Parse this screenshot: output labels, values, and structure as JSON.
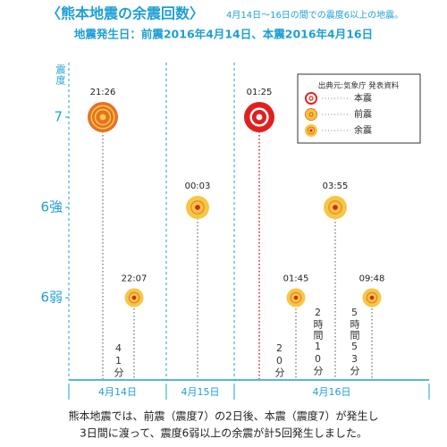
{
  "header": {
    "title": "〈熊本地震の余震回数〉",
    "subtitle": "4月14日～16日の間での震度6以上の地震。",
    "dates": "地震発生日：前震2016年4月14日、本震2016年4月16日"
  },
  "y_axis": {
    "label": "震度",
    "levels": [
      "7",
      "6強",
      "6弱"
    ]
  },
  "days": [
    "4月14日",
    "4月15日",
    "4月16日"
  ],
  "legend": {
    "source": "出典元:気象庁 発表資料",
    "items": [
      {
        "label": "本震",
        "kind": "main"
      },
      {
        "label": "前震",
        "kind": "fore"
      },
      {
        "label": "余震",
        "kind": "after"
      }
    ]
  },
  "events": [
    {
      "time": "21:26",
      "day": 0,
      "level": 0,
      "kind": "fore"
    },
    {
      "time": "22:07",
      "day": 0,
      "level": 2,
      "kind": "after"
    },
    {
      "time": "00:03",
      "day": 1,
      "level": 1,
      "kind": "after"
    },
    {
      "time": "01:25",
      "day": 2,
      "level": 0,
      "kind": "main"
    },
    {
      "time": "01:45",
      "day": 2,
      "level": 2,
      "kind": "after"
    },
    {
      "time": "03:55",
      "day": 2,
      "level": 1,
      "kind": "after"
    },
    {
      "time": "09:48",
      "day": 2,
      "level": 2,
      "kind": "after"
    }
  ],
  "intervals": [
    "41分",
    "20分",
    "2時間10分",
    "5時間53分"
  ],
  "footer": [
    "熊本地震では、前震（震度7）の2日後、本震（震度7）が発生し",
    "3日間に渡って、震度6弱以上の余震が計5回発生しました。"
  ]
}
